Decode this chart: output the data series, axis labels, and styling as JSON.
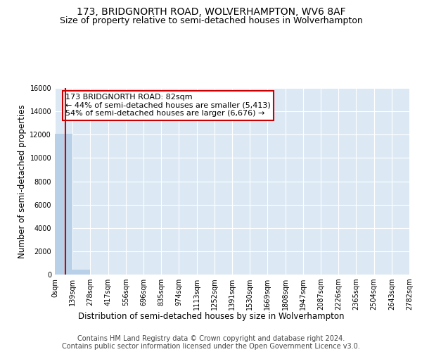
{
  "title_line1": "173, BRIDGNORTH ROAD, WOLVERHAMPTON, WV6 8AF",
  "title_line2": "Size of property relative to semi-detached houses in Wolverhampton",
  "xlabel": "Distribution of semi-detached houses by size in Wolverhampton",
  "ylabel": "Number of semi-detached properties",
  "footer_line1": "Contains HM Land Registry data © Crown copyright and database right 2024.",
  "footer_line2": "Contains public sector information licensed under the Open Government Licence v3.0.",
  "subject_size": 82,
  "annotation_line1": "173 BRIDGNORTH ROAD: 82sqm",
  "annotation_line2": "← 44% of semi-detached houses are smaller (5,413)",
  "annotation_line3": "54% of semi-detached houses are larger (6,676) →",
  "bin_edges": [
    0,
    139,
    278,
    417,
    556,
    696,
    835,
    974,
    1113,
    1252,
    1391,
    1530,
    1669,
    1808,
    1947,
    2087,
    2226,
    2365,
    2504,
    2643,
    2782
  ],
  "bin_labels": [
    "0sqm",
    "139sqm",
    "278sqm",
    "417sqm",
    "556sqm",
    "696sqm",
    "835sqm",
    "974sqm",
    "1113sqm",
    "1252sqm",
    "1391sqm",
    "1530sqm",
    "1669sqm",
    "1808sqm",
    "1947sqm",
    "2087sqm",
    "2226sqm",
    "2365sqm",
    "2504sqm",
    "2643sqm",
    "2782sqm"
  ],
  "bar_values": [
    12089,
    442,
    17,
    4,
    2,
    1,
    0,
    0,
    0,
    0,
    0,
    0,
    0,
    0,
    0,
    0,
    0,
    0,
    0,
    0
  ],
  "bar_color": "#b8d0e8",
  "red_line_x": 82,
  "ylim": [
    0,
    16000
  ],
  "yticks": [
    0,
    2000,
    4000,
    6000,
    8000,
    10000,
    12000,
    14000,
    16000
  ],
  "plot_bg_color": "#dce9f5",
  "grid_color": "#ffffff",
  "fig_bg_color": "#ffffff",
  "annotation_box_color": "#cc0000",
  "title_fontsize": 10,
  "subtitle_fontsize": 9,
  "axis_label_fontsize": 8.5,
  "tick_fontsize": 7,
  "footer_fontsize": 7,
  "annotation_fontsize": 8
}
